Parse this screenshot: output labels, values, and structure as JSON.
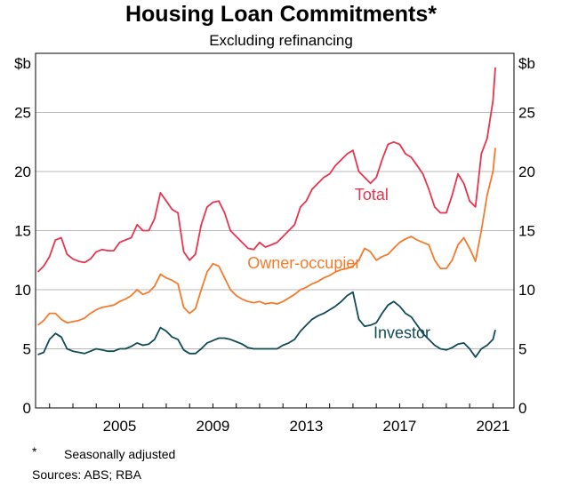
{
  "chart_data": {
    "type": "line",
    "title": "Housing Loan Commitments*",
    "subtitle": "Excluding refinancing",
    "ylabel_left": "$b",
    "ylabel_right": "$b",
    "ylim": [
      0,
      30
    ],
    "yticks": [
      0,
      5,
      10,
      15,
      20,
      25
    ],
    "xlim": [
      2001.4,
      2021.9
    ],
    "xticks": [
      2005,
      2009,
      2013,
      2017,
      2021
    ],
    "grid": true,
    "footnote_marker": "*",
    "footnote": "Seasonally adjusted",
    "sources": "Sources: ABS; RBA",
    "series": [
      {
        "name": "Total",
        "color": "#e8344e",
        "label_x": 2015.8,
        "label_y": 17.6,
        "x": [
          2001.5,
          2001.75,
          2002.0,
          2002.25,
          2002.5,
          2002.75,
          2003.0,
          2003.25,
          2003.5,
          2003.75,
          2004.0,
          2004.25,
          2004.5,
          2004.75,
          2005.0,
          2005.25,
          2005.5,
          2005.75,
          2006.0,
          2006.25,
          2006.5,
          2006.75,
          2007.0,
          2007.25,
          2007.5,
          2007.75,
          2008.0,
          2008.25,
          2008.5,
          2008.75,
          2009.0,
          2009.25,
          2009.5,
          2009.75,
          2010.0,
          2010.25,
          2010.5,
          2010.75,
          2011.0,
          2011.25,
          2011.5,
          2011.75,
          2012.0,
          2012.25,
          2012.5,
          2012.75,
          2013.0,
          2013.25,
          2013.5,
          2013.75,
          2014.0,
          2014.25,
          2014.5,
          2014.75,
          2015.0,
          2015.25,
          2015.5,
          2015.75,
          2016.0,
          2016.25,
          2016.5,
          2016.75,
          2017.0,
          2017.25,
          2017.5,
          2017.75,
          2018.0,
          2018.25,
          2018.5,
          2018.75,
          2019.0,
          2019.25,
          2019.5,
          2019.75,
          2020.0,
          2020.25,
          2020.5,
          2020.75,
          2021.0,
          2021.1
        ],
        "values": [
          11.5,
          12.0,
          12.8,
          14.2,
          14.4,
          13.0,
          12.6,
          12.4,
          12.3,
          12.6,
          13.2,
          13.4,
          13.3,
          13.3,
          14.0,
          14.2,
          14.4,
          15.5,
          15.0,
          15.0,
          16.0,
          18.2,
          17.5,
          16.8,
          16.5,
          13.2,
          12.5,
          13.0,
          15.5,
          17.0,
          17.4,
          17.5,
          16.5,
          15.0,
          14.5,
          14.0,
          13.5,
          13.4,
          14.0,
          13.6,
          13.8,
          14.0,
          14.5,
          15.0,
          15.5,
          17.0,
          17.5,
          18.5,
          19.0,
          19.5,
          19.8,
          20.5,
          21.0,
          21.5,
          21.8,
          20.0,
          19.5,
          19.0,
          19.5,
          21.0,
          22.3,
          22.5,
          22.3,
          21.5,
          21.2,
          20.5,
          19.8,
          18.5,
          17.0,
          16.5,
          16.5,
          18.0,
          19.8,
          19.0,
          17.5,
          17.0,
          21.5,
          22.8,
          26.0,
          28.8
        ]
      },
      {
        "name": "Owner-occupier",
        "color": "#f47b2c",
        "label_x": 2012.9,
        "label_y": 11.8,
        "x": [
          2001.5,
          2001.75,
          2002.0,
          2002.25,
          2002.5,
          2002.75,
          2003.0,
          2003.25,
          2003.5,
          2003.75,
          2004.0,
          2004.25,
          2004.5,
          2004.75,
          2005.0,
          2005.25,
          2005.5,
          2005.75,
          2006.0,
          2006.25,
          2006.5,
          2006.75,
          2007.0,
          2007.25,
          2007.5,
          2007.75,
          2008.0,
          2008.25,
          2008.5,
          2008.75,
          2009.0,
          2009.25,
          2009.5,
          2009.75,
          2010.0,
          2010.25,
          2010.5,
          2010.75,
          2011.0,
          2011.25,
          2011.5,
          2011.75,
          2012.0,
          2012.25,
          2012.5,
          2012.75,
          2013.0,
          2013.25,
          2013.5,
          2013.75,
          2014.0,
          2014.25,
          2014.5,
          2014.75,
          2015.0,
          2015.25,
          2015.5,
          2015.75,
          2016.0,
          2016.25,
          2016.5,
          2016.75,
          2017.0,
          2017.25,
          2017.5,
          2017.75,
          2018.0,
          2018.25,
          2018.5,
          2018.75,
          2019.0,
          2019.25,
          2019.5,
          2019.75,
          2020.0,
          2020.25,
          2020.5,
          2020.75,
          2021.0,
          2021.1
        ],
        "values": [
          7.0,
          7.4,
          8.0,
          8.0,
          7.5,
          7.2,
          7.3,
          7.4,
          7.6,
          8.0,
          8.3,
          8.5,
          8.6,
          8.7,
          9.0,
          9.2,
          9.5,
          10.0,
          9.6,
          9.8,
          10.3,
          11.3,
          11.0,
          10.8,
          10.5,
          8.5,
          8.0,
          8.4,
          10.0,
          11.5,
          12.2,
          12.0,
          11.0,
          10.0,
          9.5,
          9.2,
          9.0,
          8.9,
          9.0,
          8.8,
          8.9,
          8.8,
          9.0,
          9.3,
          9.6,
          10.0,
          10.2,
          10.5,
          10.7,
          11.0,
          11.2,
          11.5,
          11.7,
          11.8,
          12.0,
          12.5,
          13.5,
          13.2,
          12.5,
          12.8,
          13.0,
          13.5,
          14.0,
          14.3,
          14.5,
          14.2,
          14.0,
          13.8,
          12.5,
          11.8,
          11.8,
          12.5,
          13.8,
          14.4,
          13.5,
          12.4,
          15.0,
          18.0,
          20.0,
          22.0
        ]
      },
      {
        "name": "Investor",
        "color": "#124a56",
        "label_x": 2017.1,
        "label_y": 5.9,
        "x": [
          2001.5,
          2001.75,
          2002.0,
          2002.25,
          2002.5,
          2002.75,
          2003.0,
          2003.25,
          2003.5,
          2003.75,
          2004.0,
          2004.25,
          2004.5,
          2004.75,
          2005.0,
          2005.25,
          2005.5,
          2005.75,
          2006.0,
          2006.25,
          2006.5,
          2006.75,
          2007.0,
          2007.25,
          2007.5,
          2007.75,
          2008.0,
          2008.25,
          2008.5,
          2008.75,
          2009.0,
          2009.25,
          2009.5,
          2009.75,
          2010.0,
          2010.25,
          2010.5,
          2010.75,
          2011.0,
          2011.25,
          2011.5,
          2011.75,
          2012.0,
          2012.25,
          2012.5,
          2012.75,
          2013.0,
          2013.25,
          2013.5,
          2013.75,
          2014.0,
          2014.25,
          2014.5,
          2014.75,
          2015.0,
          2015.25,
          2015.5,
          2015.75,
          2016.0,
          2016.25,
          2016.5,
          2016.75,
          2017.0,
          2017.25,
          2017.5,
          2017.75,
          2018.0,
          2018.25,
          2018.5,
          2018.75,
          2019.0,
          2019.25,
          2019.5,
          2019.75,
          2020.0,
          2020.25,
          2020.5,
          2020.75,
          2021.0,
          2021.1
        ],
        "values": [
          4.5,
          4.7,
          5.8,
          6.3,
          6.0,
          5.0,
          4.8,
          4.7,
          4.6,
          4.8,
          5.0,
          4.9,
          4.8,
          4.8,
          5.0,
          5.0,
          5.2,
          5.5,
          5.3,
          5.4,
          5.8,
          6.8,
          6.5,
          6.0,
          5.8,
          4.9,
          4.6,
          4.6,
          5.0,
          5.5,
          5.7,
          5.9,
          5.9,
          5.8,
          5.6,
          5.4,
          5.1,
          5.0,
          5.0,
          5.0,
          5.0,
          5.0,
          5.3,
          5.5,
          5.8,
          6.5,
          7.0,
          7.5,
          7.8,
          8.0,
          8.3,
          8.6,
          9.0,
          9.5,
          9.8,
          7.5,
          6.9,
          7.0,
          7.2,
          8.0,
          8.7,
          9.0,
          8.6,
          8.0,
          7.7,
          7.0,
          6.3,
          5.8,
          5.3,
          5.0,
          4.9,
          5.1,
          5.4,
          5.5,
          5.0,
          4.3,
          5.0,
          5.3,
          5.8,
          6.6
        ]
      }
    ]
  }
}
